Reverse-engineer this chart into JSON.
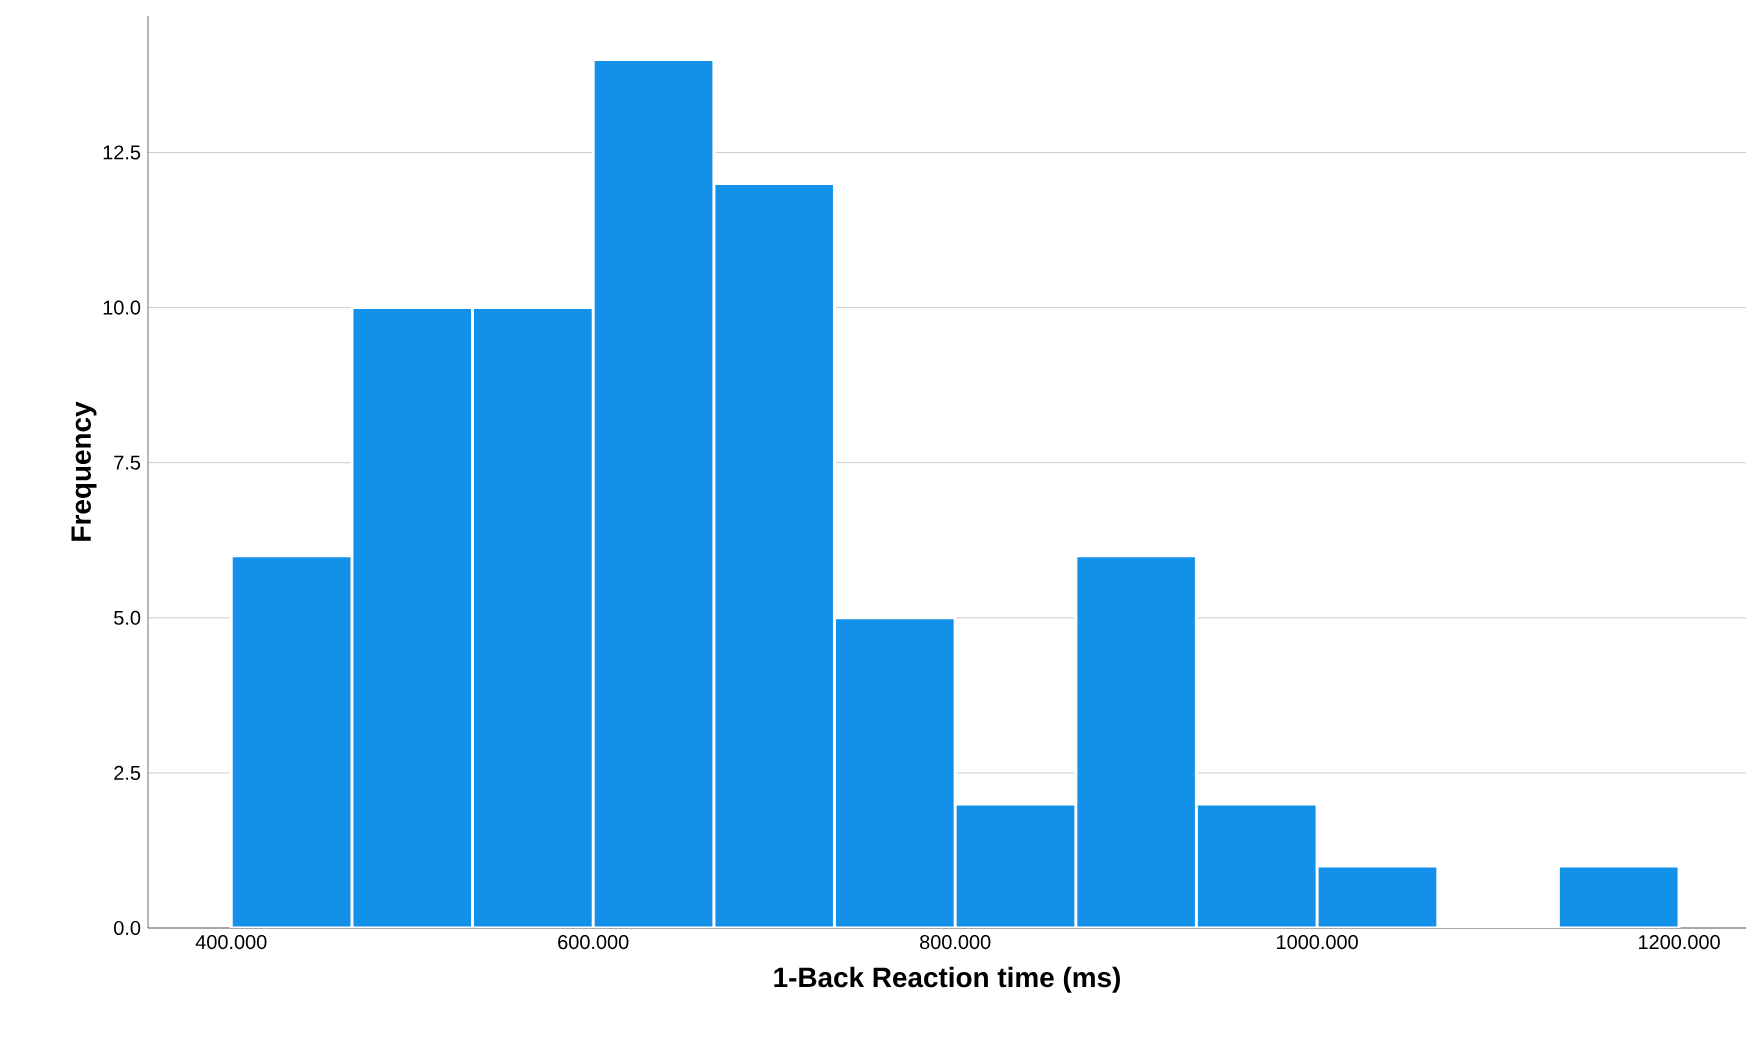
{
  "chart_data": {
    "type": "histogram",
    "xlabel": "1-Back Reaction time (ms)",
    "ylabel": "Frequency",
    "bins": [
      400,
      466.7,
      533.3,
      600,
      666.7,
      733.3,
      800,
      866.7,
      933.3,
      1000,
      1066.7,
      1133.3,
      1200
    ],
    "values": [
      6,
      10,
      10,
      14,
      12,
      5,
      2,
      6,
      2,
      1,
      0,
      1
    ],
    "color": "#1390e8",
    "xlim": [
      354,
      1237
    ],
    "ylim": [
      0,
      14.7
    ],
    "xticks": [
      {
        "value": 400,
        "label": "400.000"
      },
      {
        "value": 600,
        "label": "600.000"
      },
      {
        "value": 800,
        "label": "800.000"
      },
      {
        "value": 1000,
        "label": "1000.000"
      },
      {
        "value": 1200,
        "label": "1200.000"
      }
    ],
    "yticks": [
      {
        "value": 0,
        "label": "0.0"
      },
      {
        "value": 2.5,
        "label": "2.5"
      },
      {
        "value": 5,
        "label": "5.0"
      },
      {
        "value": 7.5,
        "label": "7.5"
      },
      {
        "value": 10,
        "label": "10.0"
      },
      {
        "value": 12.5,
        "label": "12.5"
      }
    ],
    "grid": "y"
  }
}
